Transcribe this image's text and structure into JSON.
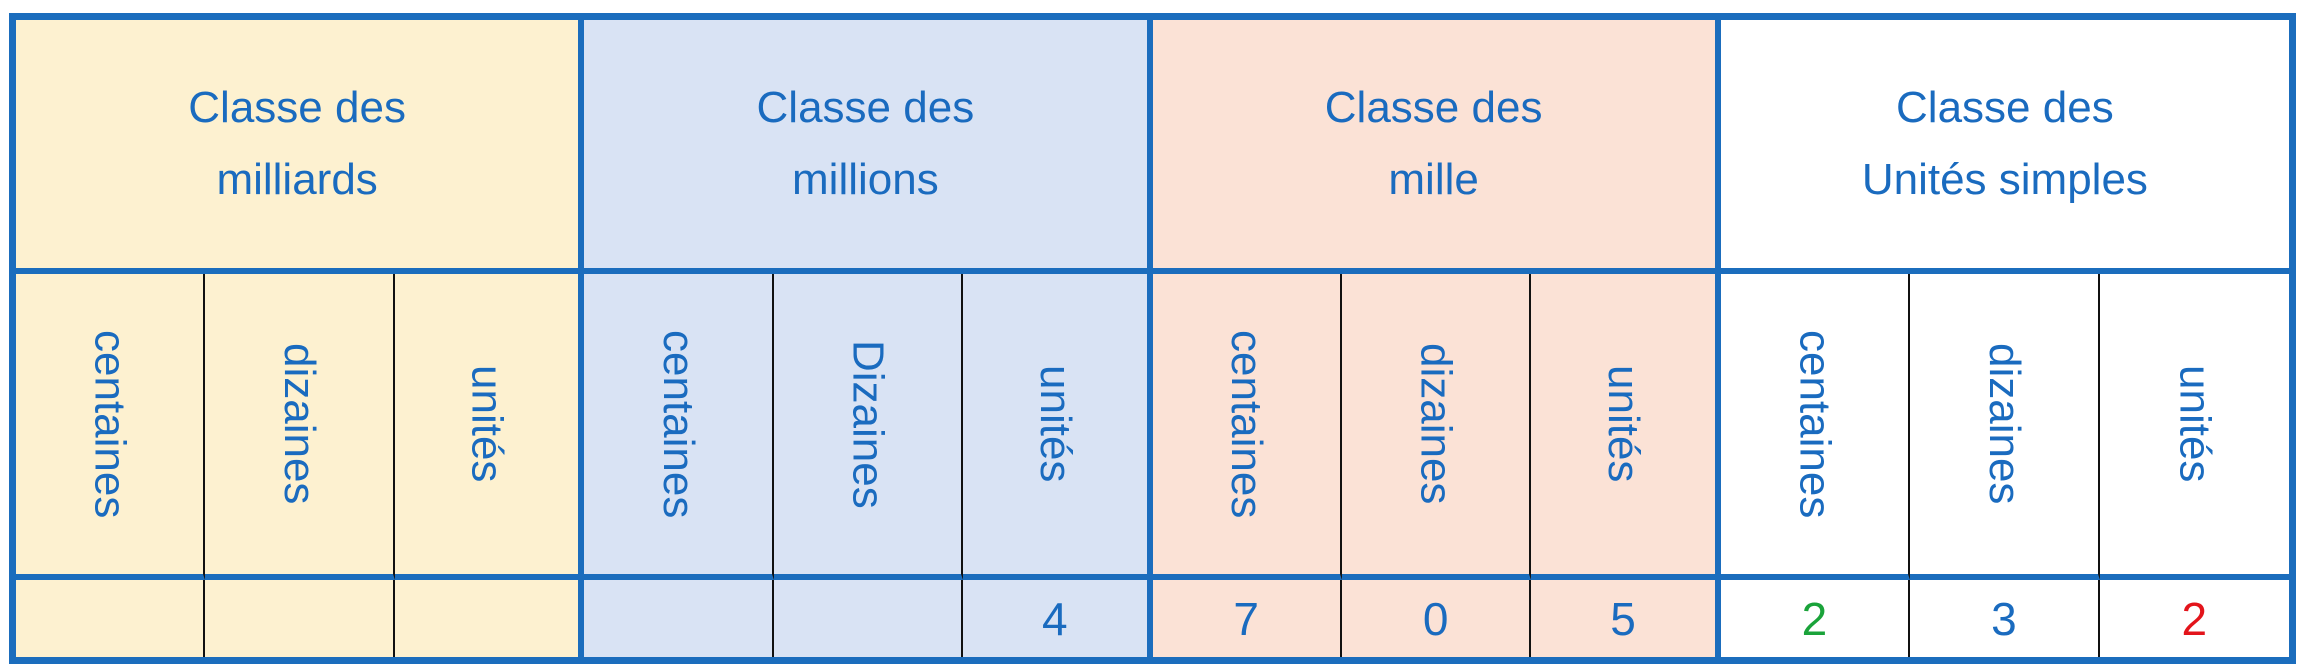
{
  "classes": [
    {
      "line1": "Classe des",
      "line2": "milliards",
      "bg": "#fdf1d0",
      "columns": [
        "centaines",
        "dizaines",
        "unités"
      ],
      "values": [
        "",
        "",
        ""
      ],
      "value_colors": [
        "#1a6bbf",
        "#1a6bbf",
        "#1a6bbf"
      ]
    },
    {
      "line1": "Classe des",
      "line2": "millions",
      "bg": "#d9e3f4",
      "columns": [
        "centaines",
        "Dizaines",
        "unités"
      ],
      "values": [
        "",
        "",
        "4"
      ],
      "value_colors": [
        "#1a6bbf",
        "#1a6bbf",
        "#1a6bbf"
      ]
    },
    {
      "line1": "Classe des",
      "line2": "mille",
      "bg": "#fbe2d6",
      "columns": [
        "centaines",
        "dizaines",
        "unités"
      ],
      "values": [
        "7",
        "0",
        "5"
      ],
      "value_colors": [
        "#1a6bbf",
        "#1a6bbf",
        "#1a6bbf"
      ]
    },
    {
      "line1": "Classe des",
      "line2": "Unités simples",
      "bg": "#ffffff",
      "columns": [
        "centaines",
        "dizaines",
        "unités"
      ],
      "values": [
        "2",
        "3",
        "2"
      ],
      "value_colors": [
        "#1aa33a",
        "#1a6bbf",
        "#e3141b"
      ]
    }
  ],
  "colors": {
    "border": "#1b6dbd",
    "text": "#1a6bbf"
  }
}
